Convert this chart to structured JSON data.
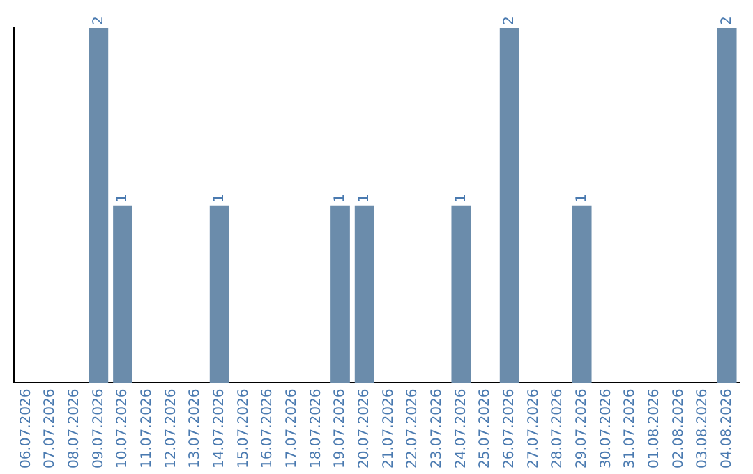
{
  "chart_data": {
    "type": "bar",
    "categories": [
      "06.07.2026",
      "07.07.2026",
      "08.07.2026",
      "09.07.2026",
      "10.07.2026",
      "11.07.2026",
      "12.07.2026",
      "13.07.2026",
      "14.07.2026",
      "15.07.2026",
      "16.07.2026",
      "17.07.2026",
      "18.07.2026",
      "19.07.2026",
      "20.07.2026",
      "21.07.2026",
      "22.07.2026",
      "23.07.2026",
      "24.07.2026",
      "25.07.2026",
      "26.07.2026",
      "27.07.2026",
      "28.07.2026",
      "29.07.2026",
      "30.07.2026",
      "31.07.2026",
      "01.08.2026",
      "02.08.2026",
      "03.08.2026",
      "04.08.2026"
    ],
    "values": [
      0,
      0,
      0,
      2,
      1,
      0,
      0,
      0,
      1,
      0,
      0,
      0,
      0,
      1,
      1,
      0,
      0,
      0,
      1,
      0,
      2,
      0,
      0,
      1,
      0,
      0,
      0,
      0,
      0,
      2
    ],
    "value_labels": [
      null,
      null,
      null,
      "2",
      "1",
      null,
      null,
      null,
      "1",
      null,
      null,
      null,
      null,
      "1",
      "1",
      null,
      null,
      null,
      "1",
      null,
      "2",
      null,
      null,
      "1",
      null,
      null,
      null,
      null,
      null,
      "2"
    ],
    "color": "#6b8cab",
    "grid": false,
    "legend": false
  }
}
